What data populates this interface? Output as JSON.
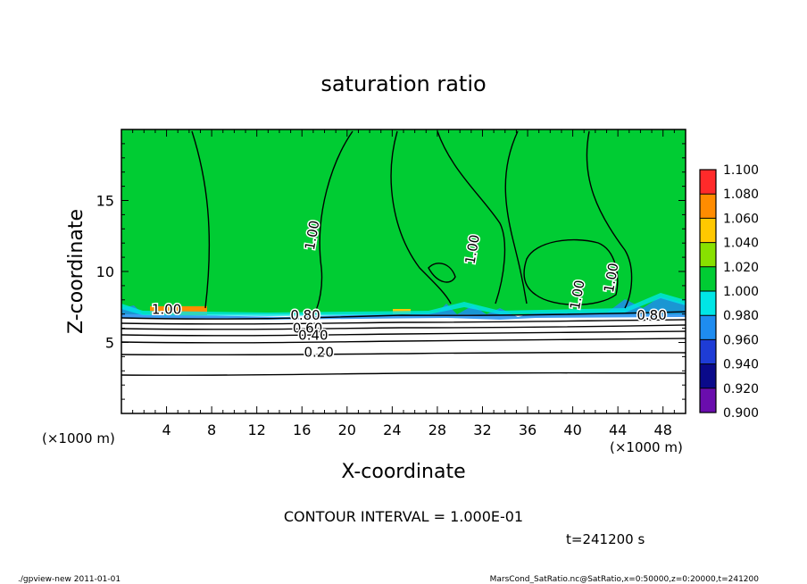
{
  "chart_data": {
    "type": "heatmap",
    "title": "saturation ratio",
    "xlabel": "X-coordinate",
    "ylabel": "Z-coordinate",
    "x_unit": "(×1000 m)",
    "y_unit": "(×1000 m)",
    "xlim": [
      0,
      50
    ],
    "ylim": [
      0,
      20
    ],
    "x_ticks": [
      4,
      8,
      12,
      16,
      20,
      24,
      28,
      32,
      36,
      40,
      44,
      48
    ],
    "y_ticks": [
      5,
      10,
      15
    ],
    "contour_interval_text": "CONTOUR INTERVAL = 1.000E-01",
    "time_text": "t=241200 s",
    "contour_labels": [
      {
        "text": "1.00",
        "x": 4.0,
        "z": 7.0
      },
      {
        "text": "0.80",
        "x": 16.3,
        "z": 6.6
      },
      {
        "text": "0.60",
        "x": 16.5,
        "z": 5.7
      },
      {
        "text": "0.40",
        "x": 17.0,
        "z": 5.2
      },
      {
        "text": "0.20",
        "x": 17.5,
        "z": 4.0
      },
      {
        "text": "1.00",
        "x": 17.3,
        "z": 12.5
      },
      {
        "text": "1.00",
        "x": 31.5,
        "z": 11.5
      },
      {
        "text": "1.00",
        "x": 40.8,
        "z": 8.3
      },
      {
        "text": "1.00",
        "x": 43.8,
        "z": 9.5
      },
      {
        "text": "0.80",
        "x": 47.0,
        "z": 6.6
      }
    ],
    "colorbar": {
      "levels": [
        0.9,
        0.92,
        0.94,
        0.96,
        0.98,
        1.0,
        1.02,
        1.04,
        1.06,
        1.08,
        1.1
      ],
      "labels": [
        "0.900",
        "0.920",
        "0.940",
        "0.960",
        "0.980",
        "1.000",
        "1.020",
        "1.040",
        "1.060",
        "1.080",
        "1.100"
      ],
      "colors": [
        "#6a0dad",
        "#0a0a8a",
        "#1e3cd6",
        "#1e8cf0",
        "#00e6e6",
        "#00cc33",
        "#88e000",
        "#ffc800",
        "#ff8c00",
        "#ff2a2a",
        "#ff9a9a"
      ]
    }
  },
  "footer": {
    "left": "./gpview-new  2011-01-01",
    "right": "MarsCond_SatRatio.nc@SatRatio,x=0:50000,z=0:20000,t=241200"
  }
}
